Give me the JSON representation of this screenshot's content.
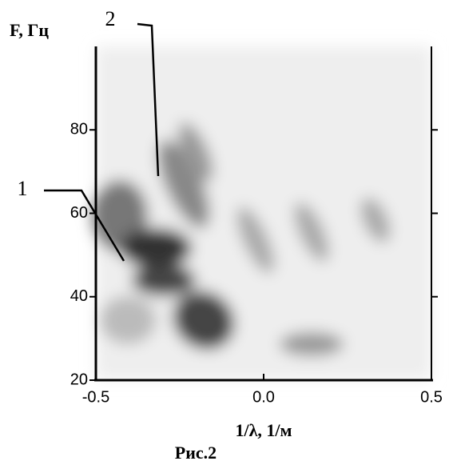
{
  "chart_data": {
    "type": "heatmap-image",
    "y_axis_label": "F, Гц",
    "x_axis_label": "1/λ, 1/м",
    "caption": "Рис.2",
    "annotations": [
      "1",
      "2"
    ],
    "xlim": [
      -0.5,
      0.5
    ],
    "xticks": [
      -0.5,
      {
        "value": 0,
        "label": "0.0"
      },
      0.5
    ],
    "ylim": [
      20,
      100
    ],
    "yticks": [
      20,
      40,
      60,
      80
    ],
    "y2ticks": [
      40,
      60,
      80
    ]
  }
}
